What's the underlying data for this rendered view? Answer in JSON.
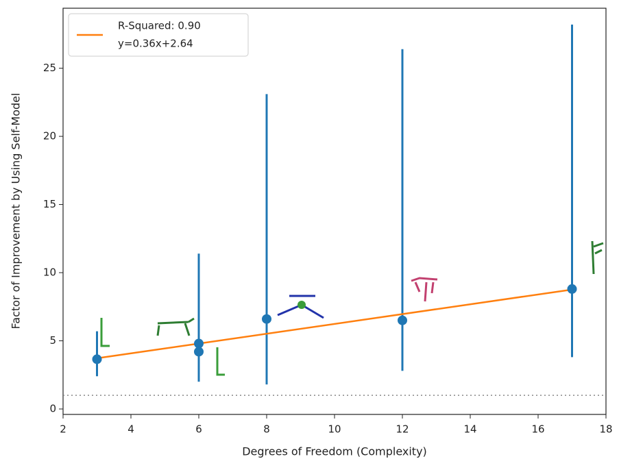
{
  "chart_data": {
    "type": "scatter",
    "xlabel": "Degrees of Freedom (Complexity)",
    "ylabel": "Factor of Improvement by Using Self-Model",
    "xlim": [
      2,
      18
    ],
    "ylim": [
      -0.4,
      29.4
    ],
    "xticks": [
      2,
      4,
      6,
      8,
      10,
      12,
      14,
      16,
      18
    ],
    "yticks": [
      0,
      5,
      10,
      15,
      20,
      25
    ],
    "points": {
      "color": "#1f77b4",
      "x": [
        3,
        6,
        6,
        8,
        12,
        17
      ],
      "values": [
        3.65,
        4.8,
        4.2,
        6.6,
        6.5,
        8.8
      ],
      "lower": [
        2.4,
        2.0,
        null,
        1.8,
        2.8,
        3.8
      ],
      "upper": [
        5.7,
        11.4,
        null,
        23.1,
        26.4,
        28.2
      ]
    },
    "fit": {
      "name_lines": [
        "R-Squared: 0.90",
        "y=0.36x+2.64"
      ],
      "color": "#ff7f0e",
      "x": [
        3,
        17
      ],
      "values": [
        3.72,
        8.76
      ]
    },
    "reference_line": {
      "value": 1,
      "color": "#888888"
    },
    "legend": "upper left"
  }
}
